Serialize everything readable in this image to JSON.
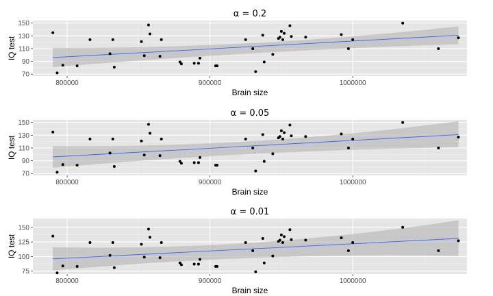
{
  "chart_data": [
    {
      "type": "scatter",
      "title": "α = 0.2",
      "xlabel": "Brain size",
      "ylabel": "IQ test",
      "xlim": [
        776000,
        1080000
      ],
      "ylim": [
        67,
        154
      ],
      "xticks": [
        800000,
        900000,
        1000000
      ],
      "yticks": [
        70,
        90,
        110,
        130,
        150
      ],
      "grid": true,
      "series": [
        {
          "points": [
            [
              790000,
              135
            ],
            [
              793000,
              72
            ],
            [
              797000,
              84
            ],
            [
              807000,
              83
            ],
            [
              816000,
              124
            ],
            [
              830000,
              102
            ],
            [
              832000,
              124
            ],
            [
              833000,
              81
            ],
            [
              852000,
              121
            ],
            [
              854000,
              99
            ],
            [
              857000,
              147
            ],
            [
              858000,
              133
            ],
            [
              865000,
              98
            ],
            [
              866000,
              124
            ],
            [
              879000,
              89
            ],
            [
              880000,
              86
            ],
            [
              889000,
              87
            ],
            [
              892000,
              87
            ],
            [
              893000,
              95
            ],
            [
              904000,
              83
            ],
            [
              905000,
              83
            ],
            [
              925000,
              124
            ],
            [
              930000,
              110
            ],
            [
              932000,
              74
            ],
            [
              937000,
              131
            ],
            [
              938000,
              89
            ],
            [
              944000,
              101
            ],
            [
              948000,
              126
            ],
            [
              949000,
              128
            ],
            [
              950000,
              137
            ],
            [
              951000,
              124
            ],
            [
              952000,
              134
            ],
            [
              956000,
              146
            ],
            [
              957000,
              129
            ],
            [
              967000,
              128
            ],
            [
              992000,
              132
            ],
            [
              997000,
              110
            ],
            [
              1000000,
              124
            ],
            [
              1035000,
              150
            ],
            [
              1060000,
              110
            ],
            [
              1074000,
              127
            ]
          ]
        }
      ],
      "fit": {
        "x": [
          790000,
          1074000
        ],
        "y": [
          96,
          131
        ]
      },
      "band": {
        "x": [
          790000,
          932000,
          1074000
        ],
        "upper": [
          111,
          119,
          145
        ],
        "lower": [
          81,
          103,
          117
        ]
      }
    },
    {
      "type": "scatter",
      "title": "α = 0.05",
      "xlabel": "Brain size",
      "ylabel": "IQ test",
      "xlim": [
        776000,
        1080000
      ],
      "ylim": [
        67,
        154
      ],
      "xticks": [
        800000,
        900000,
        1000000
      ],
      "yticks": [
        70,
        90,
        110,
        130,
        150
      ],
      "grid": true,
      "series": [
        {
          "points": [
            [
              790000,
              135
            ],
            [
              793000,
              72
            ],
            [
              797000,
              84
            ],
            [
              807000,
              83
            ],
            [
              816000,
              124
            ],
            [
              830000,
              102
            ],
            [
              832000,
              124
            ],
            [
              833000,
              81
            ],
            [
              852000,
              121
            ],
            [
              854000,
              99
            ],
            [
              857000,
              147
            ],
            [
              858000,
              133
            ],
            [
              865000,
              98
            ],
            [
              866000,
              124
            ],
            [
              879000,
              89
            ],
            [
              880000,
              86
            ],
            [
              889000,
              87
            ],
            [
              892000,
              87
            ],
            [
              893000,
              95
            ],
            [
              904000,
              83
            ],
            [
              905000,
              83
            ],
            [
              925000,
              124
            ],
            [
              930000,
              110
            ],
            [
              932000,
              74
            ],
            [
              937000,
              131
            ],
            [
              938000,
              89
            ],
            [
              944000,
              101
            ],
            [
              948000,
              126
            ],
            [
              949000,
              128
            ],
            [
              950000,
              137
            ],
            [
              951000,
              124
            ],
            [
              952000,
              134
            ],
            [
              956000,
              146
            ],
            [
              957000,
              129
            ],
            [
              967000,
              128
            ],
            [
              992000,
              132
            ],
            [
              997000,
              110
            ],
            [
              1000000,
              124
            ],
            [
              1035000,
              150
            ],
            [
              1060000,
              110
            ],
            [
              1074000,
              127
            ]
          ]
        }
      ],
      "fit": {
        "x": [
          790000,
          1074000
        ],
        "y": [
          96,
          131
        ]
      },
      "band": {
        "x": [
          790000,
          932000,
          1074000
        ],
        "upper": [
          113,
          121,
          152
        ],
        "lower": [
          79,
          101,
          111
        ]
      }
    },
    {
      "type": "scatter",
      "title": "α = 0.01",
      "xlabel": "Brain size",
      "ylabel": "IQ test",
      "xlim": [
        776000,
        1080000
      ],
      "ylim": [
        70,
        165
      ],
      "xticks": [
        800000,
        900000,
        1000000
      ],
      "yticks": [
        75,
        100,
        125,
        150
      ],
      "grid": true,
      "series": [
        {
          "points": [
            [
              790000,
              135
            ],
            [
              793000,
              72
            ],
            [
              797000,
              84
            ],
            [
              807000,
              83
            ],
            [
              816000,
              124
            ],
            [
              830000,
              102
            ],
            [
              832000,
              124
            ],
            [
              833000,
              81
            ],
            [
              852000,
              121
            ],
            [
              854000,
              99
            ],
            [
              857000,
              147
            ],
            [
              858000,
              133
            ],
            [
              865000,
              98
            ],
            [
              866000,
              124
            ],
            [
              879000,
              89
            ],
            [
              880000,
              86
            ],
            [
              889000,
              87
            ],
            [
              892000,
              87
            ],
            [
              893000,
              95
            ],
            [
              904000,
              83
            ],
            [
              905000,
              83
            ],
            [
              925000,
              124
            ],
            [
              930000,
              110
            ],
            [
              932000,
              74
            ],
            [
              937000,
              131
            ],
            [
              938000,
              89
            ],
            [
              944000,
              101
            ],
            [
              948000,
              126
            ],
            [
              949000,
              128
            ],
            [
              950000,
              137
            ],
            [
              951000,
              124
            ],
            [
              952000,
              134
            ],
            [
              956000,
              146
            ],
            [
              957000,
              129
            ],
            [
              967000,
              128
            ],
            [
              992000,
              132
            ],
            [
              997000,
              110
            ],
            [
              1000000,
              124
            ],
            [
              1035000,
              150
            ],
            [
              1060000,
              110
            ],
            [
              1074000,
              127
            ]
          ]
        }
      ],
      "fit": {
        "x": [
          790000,
          1074000
        ],
        "y": [
          96,
          131
        ]
      },
      "band": {
        "x": [
          790000,
          932000,
          1074000
        ],
        "upper": [
          116,
          124,
          162
        ],
        "lower": [
          76,
          98,
          101
        ]
      }
    }
  ],
  "colors": {
    "panel": "#e5e5e5",
    "grid_major": "#ffffff",
    "grid_minor": "#f2f2f2",
    "band": "#b3b3b3",
    "fit_line": "#3366ff",
    "point": "#000000"
  }
}
